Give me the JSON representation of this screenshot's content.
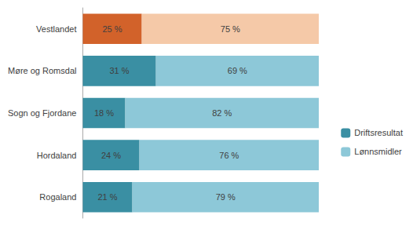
{
  "chart_data": {
    "type": "bar",
    "orientation": "horizontal",
    "stacked": true,
    "categories": [
      "Rogaland",
      "Hordaland",
      "Sogn og Fjordane",
      "Møre og Romsdal",
      "Vestlandet"
    ],
    "series": [
      {
        "name": "Driftsresultat",
        "color": "#3A8FA3",
        "colors": [
          "#3A8FA3",
          "#3A8FA3",
          "#3A8FA3",
          "#3A8FA3",
          "#D2622A"
        ],
        "values": [
          21,
          24,
          18,
          31,
          25
        ],
        "value_labels": [
          "21 %",
          "24 %",
          "18 %",
          "31 %",
          "25 %"
        ]
      },
      {
        "name": "Lønnsmidler",
        "color": "#8DC8D8",
        "colors": [
          "#8DC8D8",
          "#8DC8D8",
          "#8DC8D8",
          "#8DC8D8",
          "#F5C9A8"
        ],
        "values": [
          79,
          76,
          82,
          69,
          75
        ],
        "value_labels": [
          "79 %",
          "76 %",
          "82 %",
          "69 %",
          "75 %"
        ]
      }
    ],
    "xlim": [
      0,
      100
    ],
    "data_labels": true,
    "tick_labels": "y",
    "legend": "right",
    "grid": false
  }
}
